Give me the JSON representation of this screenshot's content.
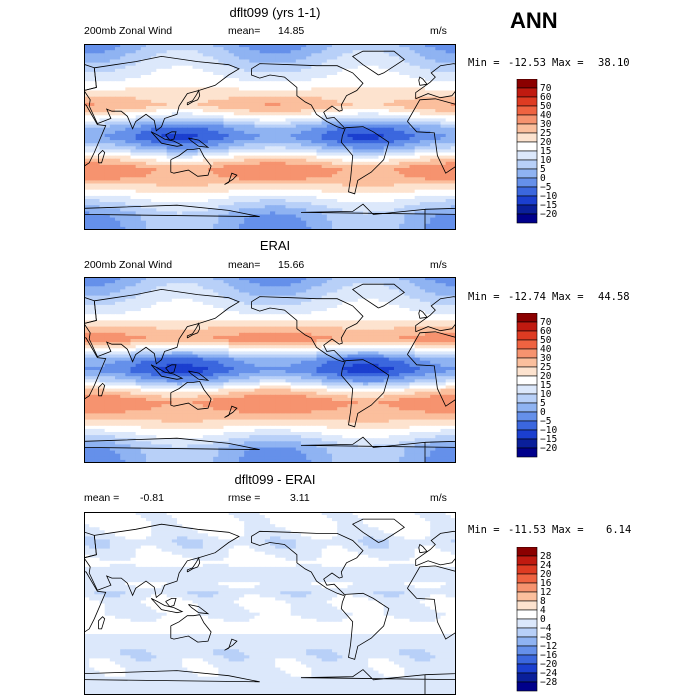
{
  "header": {
    "season": "ANN"
  },
  "chart_data": [
    {
      "type": "heatmap",
      "title": "dflt099 (yrs 1-1)",
      "variable": "200mb Zonal Wind",
      "stat_label": "mean=",
      "stat_value": "14.85",
      "units": "m/s",
      "min_label": "Min =",
      "min_value": "-12.53",
      "max_label": "Max =",
      "max_value": "38.10",
      "colorbar_levels": [
        "70",
        "60",
        "50",
        "40",
        "30",
        "25",
        "20",
        "15",
        "10",
        "5",
        "0",
        "−5",
        "−10",
        "−15",
        "−20"
      ],
      "colorbar_colors": [
        "#8b0000",
        "#c01a10",
        "#de3b22",
        "#ef6341",
        "#f6936f",
        "#fbbf9d",
        "#fde3cf",
        "#ffffff",
        "#dce8fb",
        "#b8d0f8",
        "#8fb3f2",
        "#6590ea",
        "#3b67de",
        "#1b3fcf",
        "#0a1f9a",
        "#00008b"
      ],
      "zonal_profile": [
        [
          -90,
          2
        ],
        [
          -75,
          4
        ],
        [
          -60,
          14
        ],
        [
          -50,
          22
        ],
        [
          -40,
          30
        ],
        [
          -30,
          32
        ],
        [
          -20,
          20
        ],
        [
          -10,
          4
        ],
        [
          0,
          -6
        ],
        [
          10,
          0
        ],
        [
          20,
          16
        ],
        [
          30,
          28
        ],
        [
          40,
          24
        ],
        [
          50,
          18
        ],
        [
          60,
          14
        ],
        [
          75,
          8
        ],
        [
          90,
          2
        ]
      ]
    },
    {
      "type": "heatmap",
      "title": "ERAI",
      "variable": "200mb Zonal Wind",
      "stat_label": "mean=",
      "stat_value": "15.66",
      "units": "m/s",
      "min_label": "Min =",
      "min_value": "-12.74",
      "max_label": "Max =",
      "max_value": "44.58",
      "colorbar_levels": [
        "70",
        "60",
        "50",
        "40",
        "30",
        "25",
        "20",
        "15",
        "10",
        "5",
        "0",
        "−5",
        "−10",
        "−15",
        "−20"
      ],
      "colorbar_colors": [
        "#8b0000",
        "#c01a10",
        "#de3b22",
        "#ef6341",
        "#f6936f",
        "#fbbf9d",
        "#fde3cf",
        "#ffffff",
        "#dce8fb",
        "#b8d0f8",
        "#8fb3f2",
        "#6590ea",
        "#3b67de",
        "#1b3fcf",
        "#0a1f9a",
        "#00008b"
      ],
      "zonal_profile": [
        [
          -90,
          2
        ],
        [
          -75,
          4
        ],
        [
          -60,
          16
        ],
        [
          -50,
          24
        ],
        [
          -40,
          30
        ],
        [
          -30,
          33
        ],
        [
          -20,
          22
        ],
        [
          -10,
          4
        ],
        [
          0,
          -7
        ],
        [
          10,
          -2
        ],
        [
          20,
          16
        ],
        [
          30,
          32
        ],
        [
          40,
          26
        ],
        [
          50,
          18
        ],
        [
          60,
          14
        ],
        [
          75,
          8
        ],
        [
          90,
          2
        ]
      ]
    },
    {
      "type": "heatmap",
      "title": "dflt099 - ERAI",
      "variable": "",
      "stat_label": "mean =",
      "stat_value": "-0.81",
      "stat2_label": "rmse =",
      "stat2_value": "3.11",
      "units": "m/s",
      "min_label": "Min =",
      "min_value": "-11.53",
      "max_label": "Max =",
      "max_value": "6.14",
      "colorbar_levels": [
        "28",
        "24",
        "20",
        "16",
        "12",
        "8",
        "4",
        "0",
        "−4",
        "−8",
        "−12",
        "−16",
        "−20",
        "−24",
        "−28"
      ],
      "colorbar_colors": [
        "#8b0000",
        "#c01a10",
        "#de3b22",
        "#ef6341",
        "#f6936f",
        "#fbbf9d",
        "#fde3cf",
        "#ffffff",
        "#dce8fb",
        "#b8d0f8",
        "#8fb3f2",
        "#6590ea",
        "#3b67de",
        "#1b3fcf",
        "#0a1f9a",
        "#00008b"
      ],
      "zonal_profile": [
        [
          -90,
          0
        ],
        [
          -75,
          -2
        ],
        [
          -60,
          -1
        ],
        [
          -50,
          -3
        ],
        [
          -40,
          -2
        ],
        [
          -30,
          0
        ],
        [
          -20,
          2
        ],
        [
          -10,
          -1
        ],
        [
          0,
          1
        ],
        [
          10,
          -3
        ],
        [
          20,
          0
        ],
        [
          30,
          -4
        ],
        [
          40,
          2
        ],
        [
          50,
          -1
        ],
        [
          60,
          -3
        ],
        [
          75,
          1
        ],
        [
          90,
          0
        ]
      ]
    }
  ]
}
